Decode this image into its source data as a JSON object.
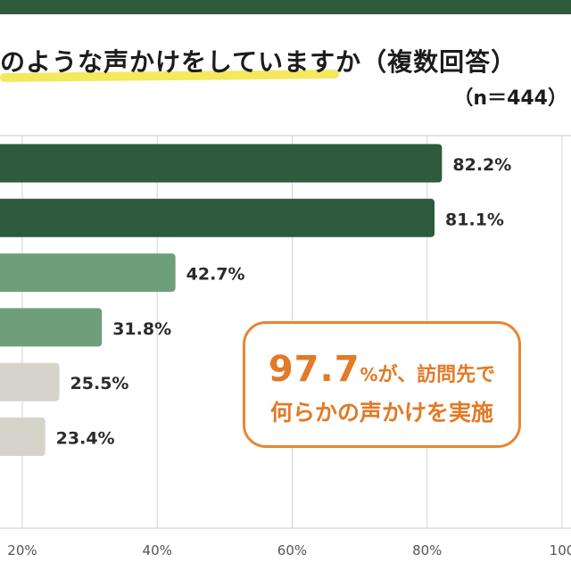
{
  "header": {
    "title": "のような声かけをしていますか（複数回答）",
    "sample": "（n＝444）"
  },
  "callout": {
    "highlight": "97.7",
    "pct_sign": "%",
    "line1_rest": "が、訪問先で",
    "line2": "何らかの声かけを実施"
  },
  "chart_data": {
    "type": "bar",
    "orientation": "horizontal",
    "values": [
      82.2,
      81.1,
      42.7,
      31.8,
      25.5,
      23.4
    ],
    "value_labels": [
      "82.2%",
      "81.1%",
      "42.7%",
      "31.8%",
      "25.5%",
      "23.4%"
    ],
    "bar_colors": [
      "#2e5a3d",
      "#2e5a3d",
      "#6f9e7b",
      "#6f9e7b",
      "#d6d3ca",
      "#d6d3ca"
    ],
    "x_ticks": [
      20,
      40,
      60,
      80,
      100
    ],
    "x_tick_labels": [
      "20%",
      "40%",
      "60%",
      "80%",
      "100"
    ],
    "xlim": [
      16.7,
      100
    ],
    "grid": true
  }
}
